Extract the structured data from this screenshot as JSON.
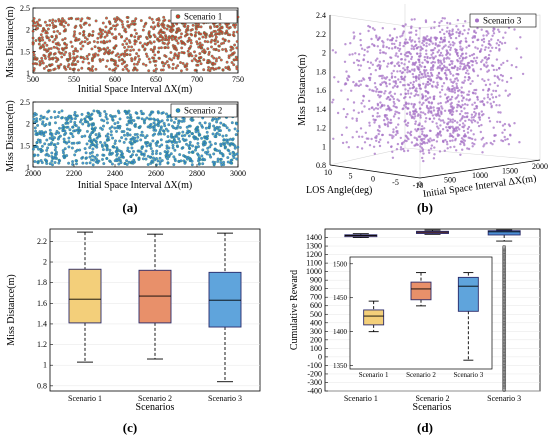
{
  "panel_labels": [
    "(a)",
    "(b)",
    "(c)",
    "(d)"
  ],
  "chart_data": [
    {
      "panel": "a-top",
      "type": "scatter",
      "legend": "Scenario 1",
      "xlabel": "Initial Space Interval ΔX(m)",
      "ylabel": "Miss Distance(m)",
      "xlim": [
        500,
        750
      ],
      "ylim": [
        1,
        2.5
      ],
      "xticks": [
        "500",
        "550",
        "600",
        "650",
        "700",
        "750"
      ],
      "yticks": [
        "1",
        "1.5",
        "2",
        "2.5"
      ],
      "point_count": 900,
      "y_range": [
        1.05,
        2.3
      ],
      "colors": {
        "marker": "#d23a2a",
        "edge": "#2e8b57"
      }
    },
    {
      "panel": "a-bottom",
      "type": "scatter",
      "legend": "Scenario 2",
      "xlabel": "Initial Space Interval ΔX(m)",
      "ylabel": "Miss Distance(m)",
      "xlim": [
        2000,
        3000
      ],
      "ylim": [
        1,
        2.5
      ],
      "xticks": [
        "2000",
        "2200",
        "2400",
        "2600",
        "2800",
        "3000"
      ],
      "yticks": [
        "1",
        "1.5",
        "2",
        "2.5"
      ],
      "point_count": 900,
      "y_range": [
        1.05,
        2.3
      ],
      "colors": {
        "marker": "#2f7fd1",
        "edge": "#2e8b57"
      }
    },
    {
      "panel": "b",
      "type": "scatter",
      "legend": "Scenario 3",
      "xlabel": "LOS Angle(deg)",
      "ylabel": "Miss Distance(m)",
      "zlabel": "Initial Space Interval ΔX(m)",
      "los_ticks": [
        "10",
        "5",
        "0",
        "-5",
        "-10"
      ],
      "interval_ticks": [
        "0",
        "500",
        "1000",
        "1500",
        "2000"
      ],
      "yticks": [
        "0.8",
        "1",
        "1.2",
        "1.4",
        "1.6",
        "1.8",
        "2",
        "2.2",
        "2.4"
      ],
      "ylim": [
        0.8,
        2.4
      ],
      "point_count": 1400,
      "colors": {
        "marker": "#a571c6"
      }
    },
    {
      "panel": "c",
      "type": "box",
      "xlabel": "Scenarios",
      "ylabel": "Miss Distance(m)",
      "categories": [
        "Scenario 1",
        "Scenario 2",
        "Scenario 3"
      ],
      "ylim": [
        0.75,
        2.32
      ],
      "yticks": [
        "0.8",
        "1",
        "1.2",
        "1.4",
        "1.6",
        "1.8",
        "2",
        "2.2"
      ],
      "boxes": [
        {
          "min": 1.03,
          "q1": 1.41,
          "median": 1.64,
          "q3": 1.93,
          "max": 2.29
        },
        {
          "min": 1.06,
          "q1": 1.41,
          "median": 1.67,
          "q3": 1.92,
          "max": 2.27
        },
        {
          "min": 0.84,
          "q1": 1.37,
          "median": 1.63,
          "q3": 1.9,
          "max": 2.28
        }
      ],
      "colors": [
        "#f3cf7a",
        "#e8906a",
        "#5fa4dc"
      ]
    },
    {
      "panel": "d",
      "type": "box",
      "xlabel": "Scenarios",
      "ylabel": "Cumulative Reward",
      "categories": [
        "Scenario 1",
        "Scenario 2",
        "Scenario 3"
      ],
      "ylim": [
        -400,
        1500
      ],
      "yticks": [
        "-400",
        "-300",
        "-200",
        "-100",
        "0",
        "100",
        "200",
        "300",
        "400",
        "500",
        "600",
        "700",
        "800",
        "900",
        "1000",
        "1100",
        "1200",
        "1300",
        "1400"
      ],
      "boxes": [
        {
          "min": 1400,
          "q1": 1410,
          "median": 1423,
          "q3": 1432,
          "max": 1445
        },
        {
          "min": 1438,
          "q1": 1447,
          "median": 1463,
          "q3": 1473,
          "max": 1487
        },
        {
          "min": 1358,
          "q1": 1430,
          "median": 1467,
          "q3": 1480,
          "max": 1487
        }
      ],
      "outliers_scenario3_range": [
        -390,
        1300
      ],
      "colors": [
        "#cfa38a",
        "#c36f8c",
        "#4c8fd6"
      ],
      "inset": {
        "ylim": [
          1345,
          1510
        ],
        "yticks": [
          "1350",
          "1400",
          "1450",
          "1500"
        ],
        "categories": [
          "Scenario 1",
          "Scenario 2",
          "Scenario 3"
        ],
        "boxes": [
          {
            "min": 1400,
            "q1": 1410,
            "median": 1423,
            "q3": 1432,
            "max": 1445
          },
          {
            "min": 1438,
            "q1": 1447,
            "median": 1463,
            "q3": 1473,
            "max": 1487
          },
          {
            "min": 1358,
            "q1": 1430,
            "median": 1467,
            "q3": 1480,
            "max": 1487
          }
        ],
        "colors": [
          "#f3cf7a",
          "#e8906a",
          "#5fa4dc"
        ]
      }
    }
  ]
}
